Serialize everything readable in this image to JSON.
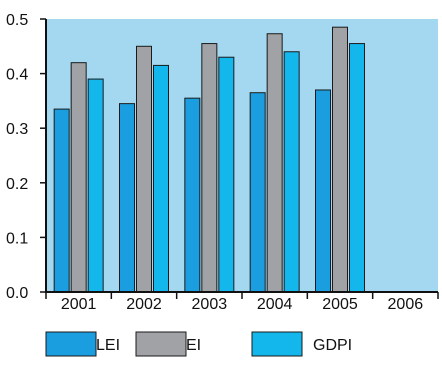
{
  "chart_data": {
    "type": "bar",
    "categories": [
      "2001",
      "2002",
      "2003",
      "2004",
      "2005",
      "2006"
    ],
    "series": [
      {
        "name": "LEI",
        "values": [
          0.335,
          0.345,
          0.355,
          0.365,
          0.37,
          null
        ],
        "color": "#1a9ee0"
      },
      {
        "name": "EI",
        "values": [
          0.42,
          0.45,
          0.455,
          0.473,
          0.485,
          null
        ],
        "color": "#a0a2a5"
      },
      {
        "name": "GDPI",
        "values": [
          0.39,
          0.415,
          0.43,
          0.44,
          0.455,
          null
        ],
        "color": "#13b7ec"
      }
    ],
    "ylim": [
      0,
      0.5
    ],
    "yticks": [
      "0.0",
      "0.1",
      "0.2",
      "0.3",
      "0.4",
      "0.5"
    ],
    "plot_background": "#a3d8f0",
    "grid": false,
    "legend_position": "bottom"
  }
}
